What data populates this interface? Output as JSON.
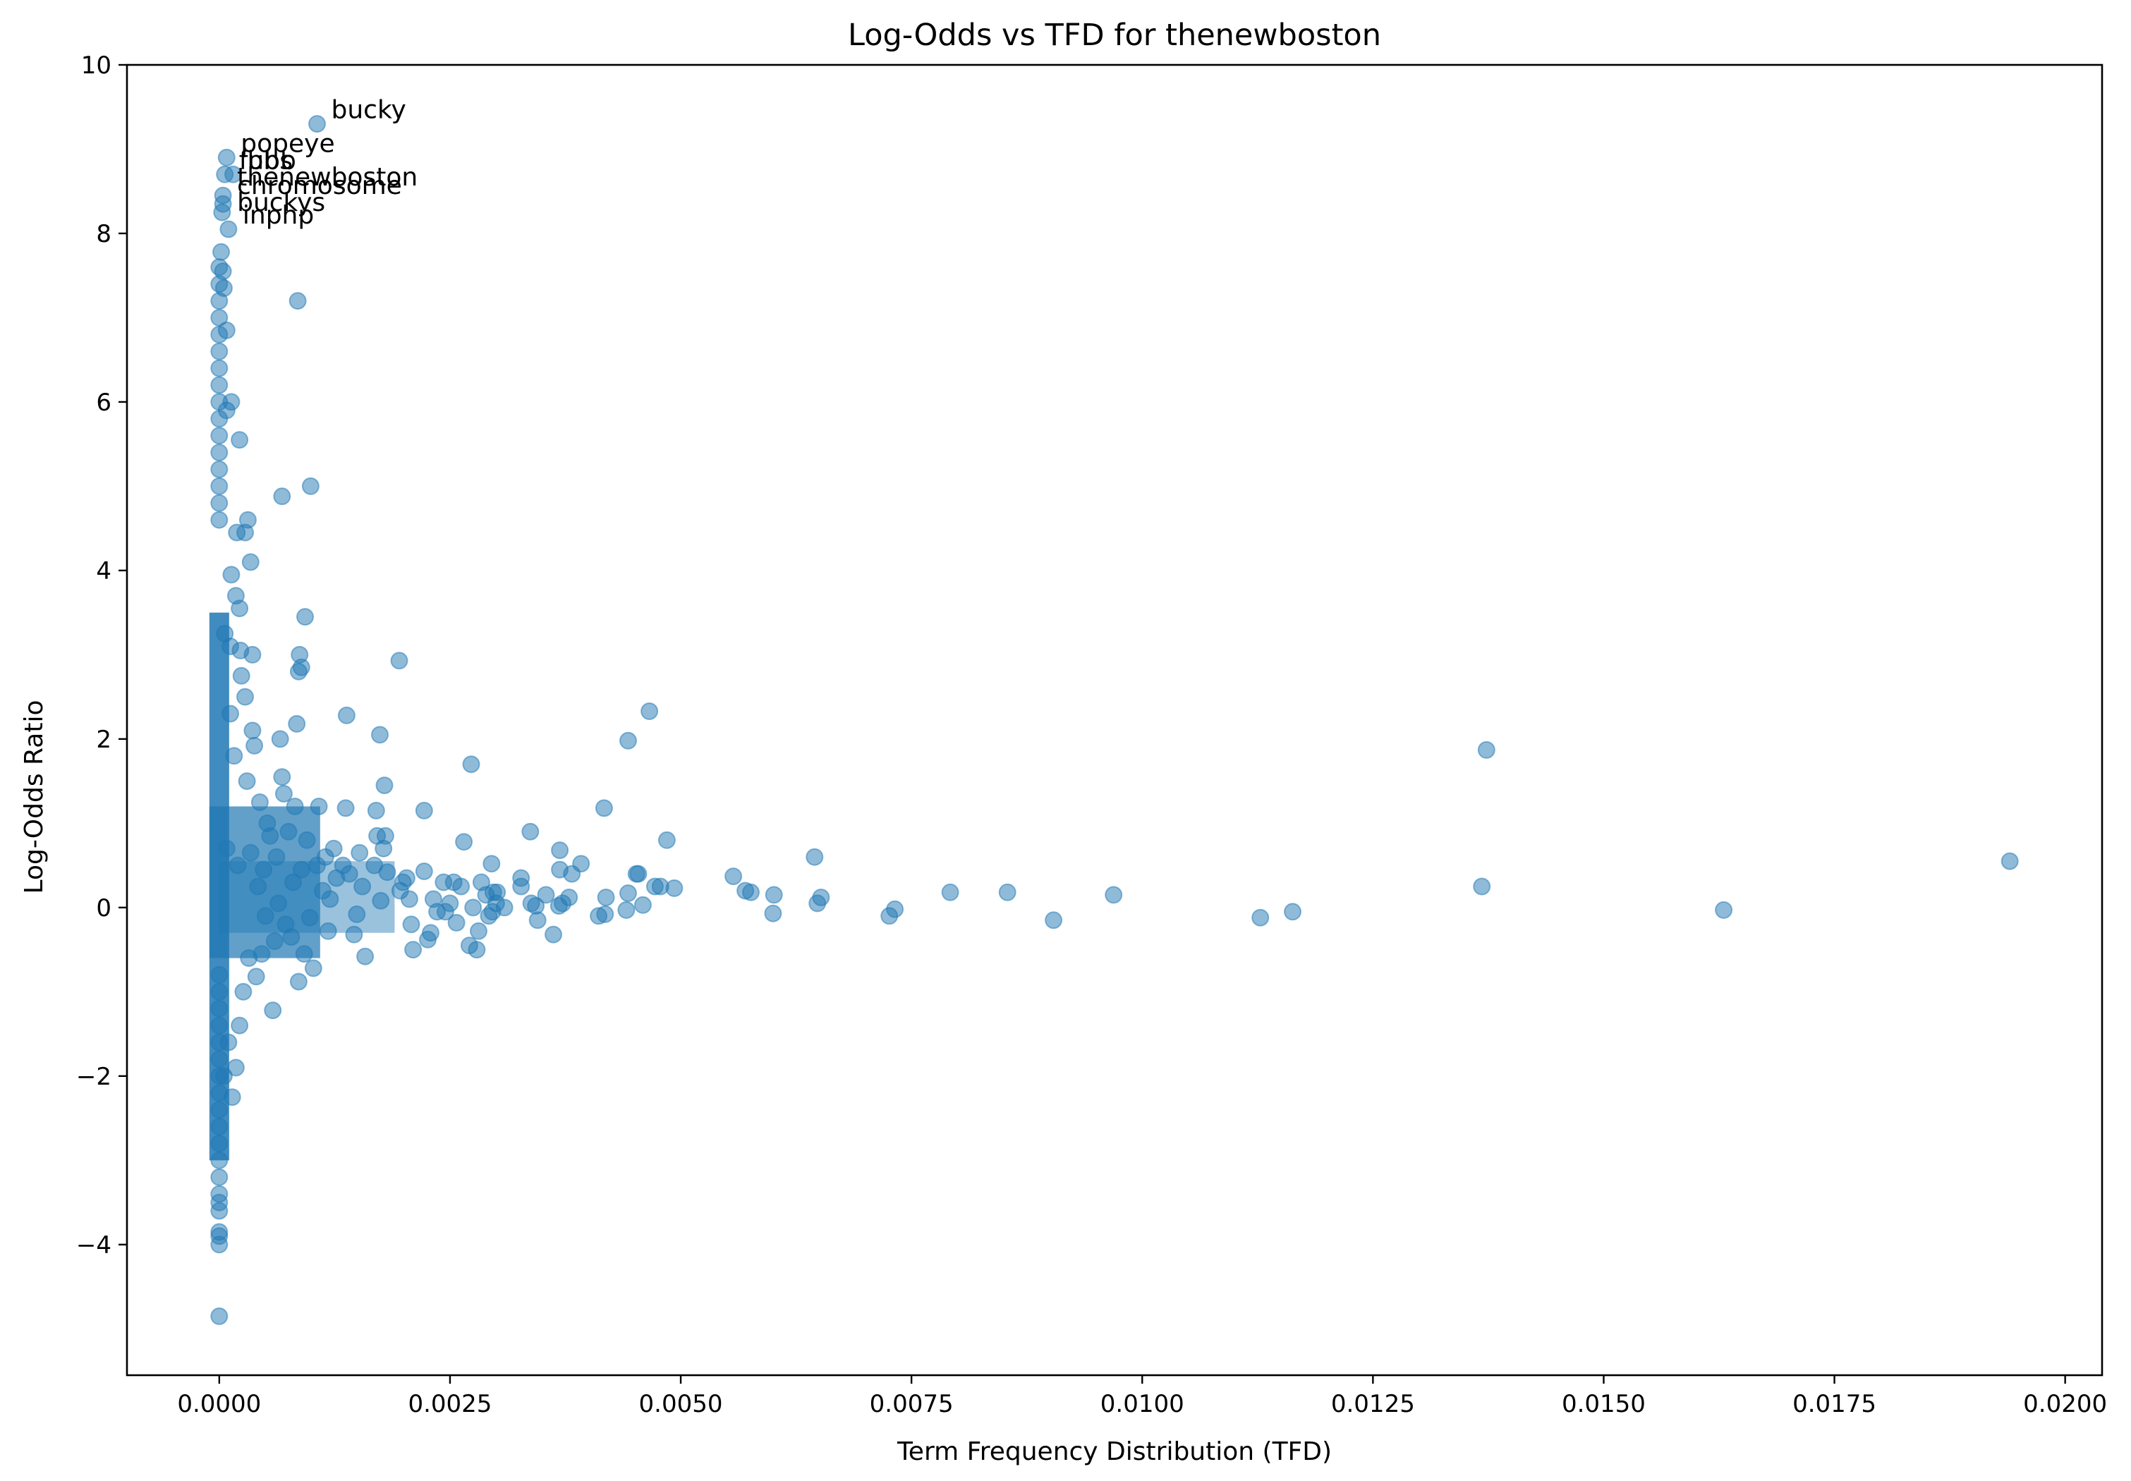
{
  "chart_data": {
    "type": "scatter",
    "title": "Log-Odds vs TFD for thenewboston",
    "xlabel": "Term Frequency Distribution (TFD)",
    "ylabel": "Log-Odds Ratio",
    "xlim": [
      -0.001,
      0.0204
    ],
    "ylim": [
      -5.55,
      10
    ],
    "xticks": [
      0.0,
      0.0025,
      0.005,
      0.0075,
      0.01,
      0.0125,
      0.015,
      0.0175,
      0.02
    ],
    "xtick_labels": [
      "0.0000",
      "0.0025",
      "0.0050",
      "0.0075",
      "0.0100",
      "0.0125",
      "0.0150",
      "0.0175",
      "0.0200"
    ],
    "yticks": [
      -4,
      -2,
      0,
      2,
      4,
      6,
      8,
      10
    ],
    "ytick_labels": [
      "−4",
      "−2",
      "0",
      "2",
      "4",
      "6",
      "8",
      "10"
    ],
    "grid": false,
    "marker_color": "#1f77b4",
    "marker_alpha": 0.5,
    "annotations": [
      {
        "text": "bucky",
        "x": 0.00106,
        "y": 9.3
      },
      {
        "text": "popeye",
        "x": 8e-05,
        "y": 8.9
      },
      {
        "text": "fubb",
        "x": 6e-05,
        "y": 8.7
      },
      {
        "text": "bbs",
        "x": 0.00015,
        "y": 8.7
      },
      {
        "text": "thenewboston",
        "x": 4e-05,
        "y": 8.5
      },
      {
        "text": "chromosome",
        "x": 4e-05,
        "y": 8.4
      },
      {
        "text": "buckys",
        "x": 4e-05,
        "y": 8.2
      },
      {
        "text": "inphp",
        "x": 0.0001,
        "y": 8.05
      }
    ],
    "points": [
      [
        0.00106,
        9.3
      ],
      [
        8e-05,
        8.9
      ],
      [
        6e-05,
        8.7
      ],
      [
        0.00015,
        8.7
      ],
      [
        4e-05,
        8.45
      ],
      [
        4e-05,
        8.35
      ],
      [
        3e-05,
        8.25
      ],
      [
        0.0001,
        8.05
      ],
      [
        0.00085,
        7.2
      ],
      [
        0.00099,
        5.0
      ],
      [
        0.00068,
        4.88
      ],
      [
        0.00022,
        5.55
      ],
      [
        0.00013,
        6.0
      ],
      [
        8e-05,
        5.9
      ],
      [
        0.00031,
        4.6
      ],
      [
        0.00034,
        4.1
      ],
      [
        0.00028,
        4.45
      ],
      [
        0.00019,
        4.45
      ],
      [
        0.00093,
        3.45
      ],
      [
        0.00022,
        3.55
      ],
      [
        0.00018,
        3.7
      ],
      [
        0.00013,
        3.95
      ],
      [
        0.00087,
        3.0
      ],
      [
        0.00086,
        2.8
      ],
      [
        0.00089,
        2.85
      ],
      [
        0.00195,
        2.93
      ],
      [
        0.00036,
        3.0
      ],
      [
        0.00023,
        3.05
      ],
      [
        0.00012,
        3.1
      ],
      [
        0.00466,
        2.33
      ],
      [
        0.00443,
        1.98
      ],
      [
        0.01373,
        1.87
      ],
      [
        0.0194,
        0.55
      ],
      [
        0.0163,
        -0.03
      ],
      [
        0.01368,
        0.25
      ],
      [
        0.01163,
        -0.05
      ],
      [
        0.01128,
        -0.12
      ],
      [
        0.00969,
        0.15
      ],
      [
        0.00904,
        -0.15
      ],
      [
        0.00854,
        0.18
      ],
      [
        0.00792,
        0.18
      ],
      [
        0.00732,
        -0.02
      ],
      [
        0.00726,
        -0.1
      ],
      [
        0.00652,
        0.12
      ],
      [
        0.00648,
        0.05
      ],
      [
        0.00645,
        0.6
      ],
      [
        0.00601,
        0.15
      ],
      [
        0.006,
        -0.07
      ],
      [
        0.00576,
        0.18
      ],
      [
        0.0057,
        0.2
      ],
      [
        0.00557,
        0.37
      ],
      [
        0.00493,
        0.23
      ],
      [
        0.00485,
        0.8
      ],
      [
        0.00478,
        0.25
      ],
      [
        0.00472,
        0.25
      ],
      [
        0.00459,
        0.03
      ],
      [
        0.00454,
        0.4
      ],
      [
        0.00452,
        0.4
      ],
      [
        0.00443,
        0.17
      ],
      [
        0.00441,
        -0.03
      ],
      [
        0.00419,
        0.12
      ],
      [
        0.00417,
        1.18
      ],
      [
        0.00418,
        -0.08
      ],
      [
        0.00411,
        -0.1
      ],
      [
        0.00392,
        0.52
      ],
      [
        0.00382,
        0.4
      ],
      [
        0.00379,
        0.12
      ],
      [
        0.00372,
        0.05
      ],
      [
        0.00369,
        0.68
      ],
      [
        0.00369,
        0.45
      ],
      [
        0.00368,
        0.02
      ],
      [
        0.00362,
        -0.32
      ],
      [
        0.00354,
        0.15
      ],
      [
        0.00345,
        -0.15
      ],
      [
        0.00343,
        0.02
      ],
      [
        0.00338,
        0.05
      ],
      [
        0.00337,
        0.9
      ],
      [
        0.00327,
        0.25
      ],
      [
        0.00327,
        0.35
      ],
      [
        0.00309,
        0.0
      ],
      [
        0.00301,
        0.18
      ],
      [
        0.003,
        0.05
      ],
      [
        0.00297,
        0.18
      ],
      [
        0.00296,
        -0.05
      ],
      [
        0.00295,
        0.52
      ],
      [
        0.00292,
        -0.1
      ],
      [
        0.00289,
        0.15
      ],
      [
        0.00284,
        0.3
      ],
      [
        0.00281,
        -0.28
      ],
      [
        0.00279,
        -0.5
      ],
      [
        0.00275,
        0.0
      ],
      [
        0.00273,
        1.7
      ],
      [
        0.00271,
        -0.45
      ],
      [
        0.00265,
        0.78
      ],
      [
        0.00262,
        0.25
      ],
      [
        0.00257,
        -0.18
      ],
      [
        0.00254,
        0.3
      ],
      [
        0.0025,
        0.05
      ],
      [
        0.00245,
        -0.05
      ],
      [
        0.00243,
        0.3
      ],
      [
        0.00236,
        -0.05
      ],
      [
        0.00232,
        0.1
      ],
      [
        0.00229,
        -0.3
      ],
      [
        0.00226,
        -0.38
      ],
      [
        0.00222,
        1.15
      ],
      [
        0.00222,
        0.43
      ],
      [
        0.0021,
        -0.5
      ],
      [
        0.00208,
        -0.2
      ],
      [
        0.00206,
        0.1
      ],
      [
        0.00203,
        0.35
      ],
      [
        0.00199,
        0.3
      ],
      [
        0.00196,
        0.2
      ],
      [
        0.00182,
        0.42
      ],
      [
        0.0018,
        0.85
      ],
      [
        0.00179,
        1.45
      ],
      [
        0.00178,
        0.7
      ],
      [
        0.00175,
        0.08
      ],
      [
        0.00174,
        2.05
      ],
      [
        0.00171,
        0.85
      ],
      [
        0.0017,
        1.15
      ],
      [
        0.00168,
        0.5
      ],
      [
        0.00158,
        -0.58
      ],
      [
        0.00155,
        0.25
      ],
      [
        0.00152,
        0.65
      ],
      [
        0.00149,
        -0.08
      ],
      [
        0.00146,
        -0.32
      ],
      [
        0.00141,
        0.4
      ],
      [
        0.00138,
        2.28
      ],
      [
        0.00137,
        1.18
      ],
      [
        0.00134,
        0.5
      ],
      [
        0.00127,
        0.35
      ],
      [
        0.00124,
        0.7
      ],
      [
        0.0012,
        0.1
      ],
      [
        0.00118,
        -0.28
      ],
      [
        0.00115,
        0.6
      ],
      [
        0.00112,
        0.2
      ],
      [
        0.00108,
        1.2
      ],
      [
        0.00106,
        0.5
      ],
      [
        0.00102,
        -0.72
      ],
      [
        0.00098,
        -0.12
      ],
      [
        0.00095,
        0.8
      ],
      [
        0.00092,
        -0.55
      ],
      [
        0.00089,
        0.45
      ],
      [
        0.00086,
        -0.88
      ],
      [
        0.00084,
        2.18
      ],
      [
        0.00082,
        1.2
      ],
      [
        0.0008,
        0.3
      ],
      [
        0.00078,
        -0.35
      ],
      [
        0.00075,
        0.9
      ],
      [
        0.00072,
        -0.2
      ],
      [
        0.0007,
        1.35
      ],
      [
        0.00068,
        1.55
      ],
      [
        0.00066,
        2.0
      ],
      [
        0.00064,
        0.05
      ],
      [
        0.00062,
        0.6
      ],
      [
        0.0006,
        -0.4
      ],
      [
        0.00058,
        -1.22
      ],
      [
        0.00055,
        0.85
      ],
      [
        0.00052,
        1.0
      ],
      [
        0.0005,
        -0.1
      ],
      [
        0.00048,
        0.45
      ],
      [
        0.00046,
        -0.55
      ],
      [
        0.00044,
        1.25
      ],
      [
        0.00042,
        0.25
      ],
      [
        0.0004,
        -0.82
      ],
      [
        0.00038,
        1.92
      ],
      [
        0.00036,
        2.1
      ],
      [
        0.00034,
        0.65
      ],
      [
        0.00032,
        -0.6
      ],
      [
        0.0003,
        1.5
      ],
      [
        0.00028,
        2.5
      ],
      [
        0.00026,
        -1.0
      ],
      [
        0.00024,
        2.75
      ],
      [
        0.00022,
        -1.4
      ],
      [
        0.0002,
        0.5
      ],
      [
        0.00018,
        -1.9
      ],
      [
        0.00016,
        1.8
      ],
      [
        0.00014,
        -2.25
      ],
      [
        0.00012,
        2.3
      ],
      [
        0.0001,
        -1.6
      ],
      [
        8e-05,
        0.7
      ],
      [
        6e-05,
        3.25
      ],
      [
        5e-05,
        -2.0
      ],
      [
        0.0,
        -4.85
      ],
      [
        0.0,
        -4.0
      ],
      [
        0.0,
        -3.9
      ],
      [
        0.0,
        -3.85
      ],
      [
        0.0,
        -3.6
      ],
      [
        0.0,
        -3.5
      ],
      [
        0.0,
        -3.4
      ],
      [
        0.0,
        -3.2
      ],
      [
        0.0,
        -3.0
      ],
      [
        0.0,
        -2.8
      ],
      [
        0.0,
        -2.6
      ],
      [
        0.0,
        -2.4
      ],
      [
        0.0,
        -2.2
      ],
      [
        0.0,
        -2.0
      ],
      [
        0.0,
        -1.8
      ],
      [
        0.0,
        -1.6
      ],
      [
        0.0,
        -1.4
      ],
      [
        0.0,
        -1.2
      ],
      [
        0.0,
        -1.0
      ],
      [
        0.0,
        -0.8
      ],
      [
        0.0,
        4.6
      ],
      [
        0.0,
        4.8
      ],
      [
        0.0,
        5.0
      ],
      [
        0.0,
        5.2
      ],
      [
        0.0,
        5.4
      ],
      [
        0.0,
        5.6
      ],
      [
        0.0,
        5.8
      ],
      [
        0.0,
        6.0
      ],
      [
        0.0,
        6.2
      ],
      [
        0.0,
        6.4
      ],
      [
        0.0,
        6.6
      ],
      [
        0.0,
        6.8
      ],
      [
        0.0,
        7.0
      ],
      [
        0.0,
        7.2
      ],
      [
        0.0,
        7.4
      ],
      [
        0.0,
        7.6
      ],
      [
        2e-05,
        7.78
      ],
      [
        4e-05,
        7.55
      ],
      [
        5e-05,
        7.35
      ],
      [
        8e-05,
        6.85
      ]
    ]
  }
}
